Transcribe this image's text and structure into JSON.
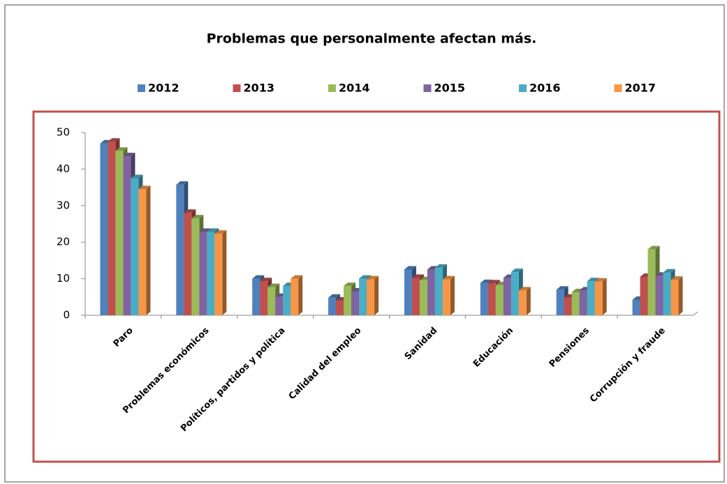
{
  "chart_data": {
    "type": "bar3d",
    "title": "Problemas que personalmente afectan más.",
    "categories": [
      "Paro",
      "Problemas económicos",
      "Políticos, partidos y política",
      "Calidad del empleo",
      "Sanidad",
      "Educación",
      "Pensiones",
      "Corrupción y fraude"
    ],
    "series": [
      {
        "name": "2012",
        "color": "#4f81bd",
        "values": [
          47,
          35.7,
          10,
          4.8,
          12.5,
          8.8,
          7,
          4.2
        ]
      },
      {
        "name": "2013",
        "color": "#c0504d",
        "values": [
          47.5,
          28,
          9.3,
          4,
          10.2,
          8.7,
          4.8,
          10.5
        ]
      },
      {
        "name": "2014",
        "color": "#9bbb59",
        "values": [
          45,
          26.5,
          7.7,
          8,
          9.6,
          8.2,
          6.3,
          18
        ]
      },
      {
        "name": "2015",
        "color": "#8064a2",
        "values": [
          43.5,
          22.8,
          5,
          6.5,
          12.5,
          10.2,
          6.8,
          10.8
        ]
      },
      {
        "name": "2016",
        "color": "#4bacc6",
        "values": [
          37.5,
          22.8,
          8,
          10,
          13,
          11.8,
          9.3,
          11.7
        ]
      },
      {
        "name": "2017",
        "color": "#f79646",
        "values": [
          34.5,
          22.3,
          10,
          9.8,
          9.8,
          6.8,
          9.2,
          9.7
        ]
      }
    ],
    "ylim": [
      0,
      50
    ],
    "yticks": [
      0,
      10,
      20,
      30,
      40,
      50
    ],
    "legend": "top"
  }
}
